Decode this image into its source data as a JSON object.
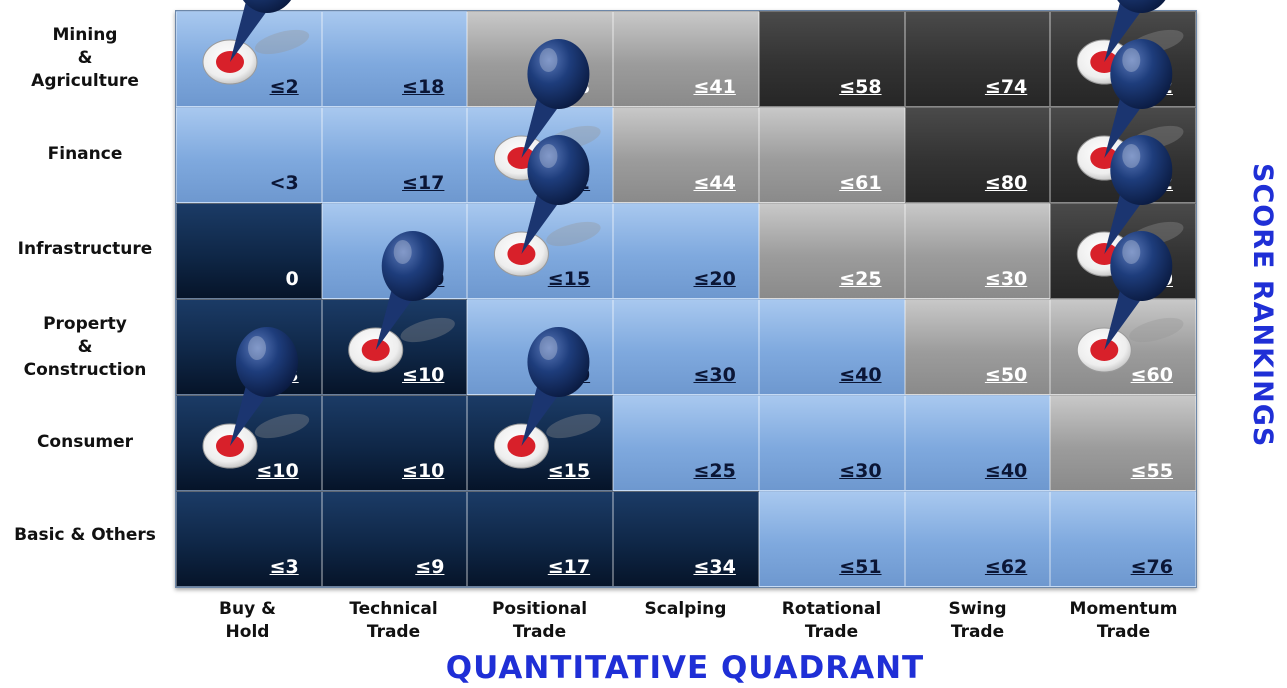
{
  "y_axis_title": "SCORE RANKINGS",
  "x_axis_title": "QUANTITATIVE QUADRANT",
  "rows": [
    "Mining\n&\nAgriculture",
    "Finance",
    "Infrastructure",
    "Property\n&\nConstruction",
    "Consumer",
    "Basic & Others"
  ],
  "columns": [
    "Buy &\nHold",
    "Technical\nTrade",
    "Positional\nTrade",
    "Scalping",
    "Rotational\nTrade",
    "Swing\nTrade",
    "Momentum\nTrade"
  ],
  "cells": [
    [
      {
        "v": "≤2",
        "t": "light"
      },
      {
        "v": "≤18",
        "t": "light"
      },
      {
        "v": "<28",
        "t": "grey"
      },
      {
        "v": "≤41",
        "t": "grey"
      },
      {
        "v": "≤58",
        "t": "charcoal"
      },
      {
        "v": "≤74",
        "t": "charcoal"
      },
      {
        "v": "≤92",
        "t": "charcoal"
      }
    ],
    [
      {
        "v": "<3",
        "t": "light"
      },
      {
        "v": "≤17",
        "t": "light"
      },
      {
        "v": "≤32",
        "t": "light"
      },
      {
        "v": "≤44",
        "t": "grey"
      },
      {
        "v": "≤61",
        "t": "grey"
      },
      {
        "v": "≤80",
        "t": "charcoal"
      },
      {
        "v": "≤92",
        "t": "charcoal"
      }
    ],
    [
      {
        "v": "0",
        "t": "dark"
      },
      {
        "v": "≤10",
        "t": "light"
      },
      {
        "v": "≤15",
        "t": "light"
      },
      {
        "v": "≤20",
        "t": "light"
      },
      {
        "v": "≤25",
        "t": "grey"
      },
      {
        "v": "≤30",
        "t": "grey"
      },
      {
        "v": "≤40",
        "t": "charcoal"
      }
    ],
    [
      {
        "v": "≤3",
        "t": "dark"
      },
      {
        "v": "≤10",
        "t": "dark"
      },
      {
        "v": "≤20",
        "t": "light"
      },
      {
        "v": "≤30",
        "t": "light"
      },
      {
        "v": "≤40",
        "t": "light"
      },
      {
        "v": "≤50",
        "t": "grey"
      },
      {
        "v": "≤60",
        "t": "grey"
      }
    ],
    [
      {
        "v": "≤10",
        "t": "dark"
      },
      {
        "v": "≤10",
        "t": "dark"
      },
      {
        "v": "≤15",
        "t": "dark"
      },
      {
        "v": "≤25",
        "t": "light"
      },
      {
        "v": "≤30",
        "t": "light"
      },
      {
        "v": "≤40",
        "t": "light"
      },
      {
        "v": "≤55",
        "t": "grey"
      }
    ],
    [
      {
        "v": "≤3",
        "t": "dark"
      },
      {
        "v": "≤9",
        "t": "dark"
      },
      {
        "v": "≤17",
        "t": "dark"
      },
      {
        "v": "≤34",
        "t": "dark"
      },
      {
        "v": "≤51",
        "t": "light"
      },
      {
        "v": "≤62",
        "t": "light"
      },
      {
        "v": "≤76",
        "t": "light"
      }
    ]
  ],
  "pins": [
    {
      "row": 0,
      "col": 0
    },
    {
      "row": 1,
      "col": 2
    },
    {
      "row": 2,
      "col": 2
    },
    {
      "row": 3,
      "col": 1
    },
    {
      "row": 4,
      "col": 0
    },
    {
      "row": 4,
      "col": 2
    },
    {
      "row": 0,
      "col": 6
    },
    {
      "row": 1,
      "col": 6
    },
    {
      "row": 2,
      "col": 6
    },
    {
      "row": 3,
      "col": 6
    }
  ],
  "colors": {
    "axis_title": "#1f2fd6",
    "pin": "#1b3570",
    "pin_target": "#d8202a"
  }
}
